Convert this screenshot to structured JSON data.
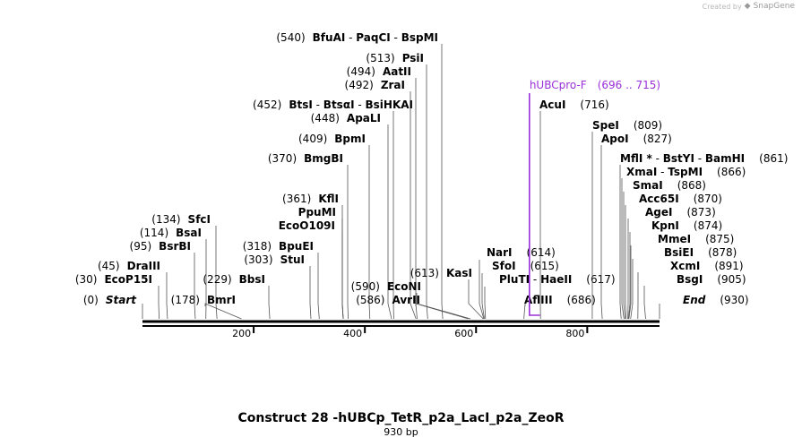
{
  "watermark": {
    "prefix": "Created by",
    "brand": "SnapGene"
  },
  "construct": {
    "name": "Construct 28 -hUBCp_TetR_p2a_LacI_p2a_ZeoR",
    "length": "930 bp"
  },
  "colors": {
    "primer": "#9b30d9",
    "line": "#555555",
    "backbone": "#000000"
  },
  "axis": {
    "min": 0,
    "max": 930,
    "ticks": [
      200,
      400,
      600,
      800
    ]
  },
  "sites": [
    {
      "label": [
        [
          "num",
          "(540)"
        ],
        [
          "nm",
          "BfuAI"
        ],
        [
          "sep",
          " - "
        ],
        [
          "nm",
          "PaqCI"
        ],
        [
          "sep",
          " - "
        ],
        [
          "nm",
          "BspMI"
        ]
      ],
      "pos": 540
    },
    {
      "label": [
        [
          "num",
          "(513)"
        ],
        [
          "nm",
          "PsiI"
        ]
      ],
      "pos": 513
    },
    {
      "label": [
        [
          "num",
          "(494)"
        ],
        [
          "nm",
          "AatII"
        ]
      ],
      "pos": 494
    },
    {
      "label": [
        [
          "num",
          "(492)"
        ],
        [
          "nm",
          "ZraI"
        ]
      ],
      "pos": 492
    },
    {
      "label": [
        [
          "num",
          "(452)"
        ],
        [
          "nm",
          "BtsI"
        ],
        [
          "sep",
          " - "
        ],
        [
          "nm",
          "BtsαI"
        ],
        [
          "sep",
          " - "
        ],
        [
          "nm",
          "BsiHKAI"
        ]
      ],
      "pos": 452
    },
    {
      "label": [
        [
          "num",
          "(448)"
        ],
        [
          "nm",
          "ApaLI"
        ]
      ],
      "pos": 448
    },
    {
      "label": [
        [
          "num",
          "(409)"
        ],
        [
          "nm",
          "BpmI"
        ]
      ],
      "pos": 409
    },
    {
      "label": [
        [
          "num",
          "(370)"
        ],
        [
          "nm",
          "BmgBI"
        ]
      ],
      "pos": 370
    },
    {
      "label": [
        [
          "num",
          "(361)"
        ],
        [
          "nm",
          "KflI"
        ]
      ],
      "pos": 361
    },
    {
      "label": [
        [
          "nm",
          "PpuMI"
        ]
      ],
      "pos": 361
    },
    {
      "label": [
        [
          "nm",
          "EcoO109I"
        ]
      ],
      "pos": 361
    },
    {
      "label": [
        [
          "num",
          "(318)"
        ],
        [
          "nm",
          "BpuEI"
        ]
      ],
      "pos": 318
    },
    {
      "label": [
        [
          "num",
          "(303)"
        ],
        [
          "nm",
          "StuI"
        ]
      ],
      "pos": 303
    },
    {
      "label": [
        [
          "num",
          "(134)"
        ],
        [
          "nm",
          "SfcI"
        ]
      ],
      "pos": 134
    },
    {
      "label": [
        [
          "num",
          "(114)"
        ],
        [
          "nm",
          "BsaI"
        ]
      ],
      "pos": 114
    },
    {
      "label": [
        [
          "num",
          "(95)"
        ],
        [
          "nm",
          "BsrBI"
        ]
      ],
      "pos": 95
    },
    {
      "label": [
        [
          "num",
          "(45)"
        ],
        [
          "nm",
          "DraIII"
        ]
      ],
      "pos": 45
    },
    {
      "label": [
        [
          "num",
          "(30)"
        ],
        [
          "nm",
          "EcoP15I"
        ]
      ],
      "pos": 30
    },
    {
      "label": [
        [
          "num",
          "(0)"
        ],
        [
          "nm",
          "Start"
        ]
      ],
      "pos": 0
    },
    {
      "label": [
        [
          "num",
          "(178)"
        ],
        [
          "nm",
          "BmrI"
        ]
      ],
      "pos": 178
    },
    {
      "label": [
        [
          "num",
          "(229)"
        ],
        [
          "nm",
          "BbsI"
        ]
      ],
      "pos": 229
    },
    {
      "label": [
        [
          "num",
          "(586)"
        ],
        [
          "nm",
          "AvrII"
        ]
      ],
      "pos": 586
    },
    {
      "label": [
        [
          "num",
          "(590)"
        ],
        [
          "nm",
          "EcoNI"
        ]
      ],
      "pos": 590
    },
    {
      "label": [
        [
          "num",
          "(613)"
        ],
        [
          "nm",
          "KasI"
        ]
      ],
      "pos": 613
    },
    {
      "label": [
        [
          "nm",
          "NarI"
        ],
        [
          "num",
          "(614)"
        ]
      ],
      "pos": 614
    },
    {
      "label": [
        [
          "nm",
          "SfoI"
        ],
        [
          "num",
          "(615)"
        ]
      ],
      "pos": 615
    },
    {
      "label": [
        [
          "nm",
          "PluTI"
        ],
        [
          "sep",
          " - "
        ],
        [
          "nm",
          "HaeII"
        ],
        [
          "num",
          "(617)"
        ]
      ],
      "pos": 617
    },
    {
      "label": [
        [
          "nm",
          "AflIII"
        ],
        [
          "num",
          "(686)"
        ]
      ],
      "pos": 686
    },
    {
      "label": [
        [
          "nm",
          "AcuI"
        ],
        [
          "num",
          "(716)"
        ]
      ],
      "pos": 716
    },
    {
      "label": [
        [
          "nm",
          "SpeI"
        ],
        [
          "num",
          "(809)"
        ]
      ],
      "pos": 809
    },
    {
      "label": [
        [
          "nm",
          "ApoI"
        ],
        [
          "num",
          "(827)"
        ]
      ],
      "pos": 827
    },
    {
      "label": [
        [
          "nm",
          "MflI *"
        ],
        [
          "sep",
          " - "
        ],
        [
          "nm",
          "BstYI"
        ],
        [
          "sep",
          " - "
        ],
        [
          "nm",
          "BamHI"
        ],
        [
          "num",
          "(861)"
        ]
      ],
      "pos": 861
    },
    {
      "label": [
        [
          "nm",
          "XmaI"
        ],
        [
          "sep",
          " - "
        ],
        [
          "nm",
          "TspMI"
        ],
        [
          "num",
          "(866)"
        ]
      ],
      "pos": 866
    },
    {
      "label": [
        [
          "nm",
          "SmaI"
        ],
        [
          "num",
          "(868)"
        ]
      ],
      "pos": 868
    },
    {
      "label": [
        [
          "nm",
          "Acc65I"
        ],
        [
          "num",
          "(870)"
        ]
      ],
      "pos": 870
    },
    {
      "label": [
        [
          "nm",
          "AgeI"
        ],
        [
          "num",
          "(873)"
        ]
      ],
      "pos": 873
    },
    {
      "label": [
        [
          "nm",
          "KpnI"
        ],
        [
          "num",
          "(874)"
        ]
      ],
      "pos": 874
    },
    {
      "label": [
        [
          "nm",
          "MmeI"
        ],
        [
          "num",
          "(875)"
        ]
      ],
      "pos": 875
    },
    {
      "label": [
        [
          "nm",
          "BsiEI"
        ],
        [
          "num",
          "(878)"
        ]
      ],
      "pos": 878
    },
    {
      "label": [
        [
          "nm",
          "XcmI"
        ],
        [
          "num",
          "(891)"
        ]
      ],
      "pos": 891
    },
    {
      "label": [
        [
          "nm",
          "BsgI"
        ],
        [
          "num",
          "(905)"
        ]
      ],
      "pos": 905
    },
    {
      "label": [
        [
          "nm",
          "End"
        ],
        [
          "num",
          "(930)"
        ]
      ],
      "pos": 930
    }
  ],
  "primer": {
    "name": "hUBCpro-F",
    "range": "(696 .. 715)",
    "start": 696,
    "end": 715
  }
}
